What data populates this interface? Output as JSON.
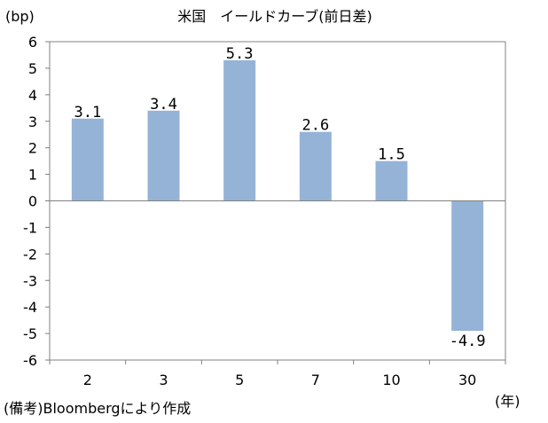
{
  "chart_data": {
    "type": "bar",
    "title": "米国　イールドカーブ(前日差)",
    "ylabel": "(bp)",
    "xlabel": "(年)",
    "categories": [
      "2",
      "3",
      "5",
      "7",
      "10",
      "30"
    ],
    "values": [
      3.1,
      3.4,
      5.3,
      2.6,
      1.5,
      -4.9
    ],
    "data_labels": [
      "3.1",
      "3.4",
      "5.3",
      "2.6",
      "1.5",
      "-4.9"
    ],
    "ylim": [
      -6,
      6
    ],
    "yticks": [
      "6",
      "5",
      "4",
      "3",
      "2",
      "1",
      "0",
      "-1",
      "-2",
      "-3",
      "-4",
      "-5",
      "-6"
    ],
    "grid": false,
    "legend": "none",
    "bar_color": "#95b3d7",
    "source_note": "(備考)Bloombergにより作成"
  }
}
